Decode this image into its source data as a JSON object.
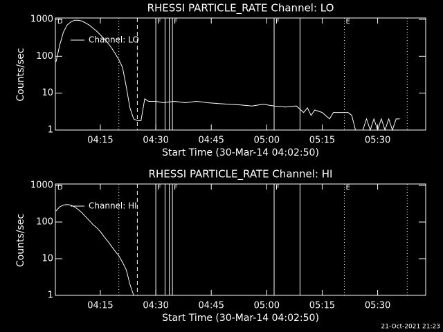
{
  "chart_data": [
    {
      "type": "line",
      "title": "RHESSI PARTICLE_RATE Channel: LO",
      "xlabel": "Start Time (30-Mar-14 04:02:50)",
      "ylabel": "Counts/sec",
      "log": true,
      "legend": "upper left",
      "ylim": [
        1,
        1000
      ],
      "yticks": [
        1,
        10,
        100,
        1000
      ],
      "xlim": [
        "04:02:50",
        "05:43"
      ],
      "xticks": [
        "04:15",
        "04:30",
        "04:45",
        "05:00",
        "05:15",
        "05:30"
      ],
      "markers": [
        {
          "x": "04:20",
          "style": "dotted"
        },
        {
          "x": "04:25",
          "style": "dashed"
        },
        {
          "x": "04:30",
          "style": "solid"
        },
        {
          "x": "04:32:30",
          "style": "solid"
        },
        {
          "x": "04:33:40",
          "style": "solid"
        },
        {
          "x": "04:34:30",
          "style": "solid"
        },
        {
          "x": "05:02",
          "style": "solid"
        },
        {
          "x": "05:09",
          "style": "solid"
        },
        {
          "x": "05:21",
          "style": "dotted"
        },
        {
          "x": "05:38",
          "style": "dotted"
        }
      ],
      "annotations": [
        {
          "text": "D",
          "x": "04:03"
        },
        {
          "text": "F",
          "x": "04:30"
        },
        {
          "text": "F",
          "x": "04:34:30"
        },
        {
          "text": "F",
          "x": "05:02"
        },
        {
          "text": "E",
          "x": "05:21"
        }
      ],
      "series": [
        {
          "name": "Channel: LO",
          "color": "#ffffff",
          "x": [
            "04:03",
            "04:04",
            "04:05",
            "04:06",
            "04:07",
            "04:08",
            "04:09",
            "04:10",
            "04:11",
            "04:12",
            "04:13",
            "04:14",
            "04:15",
            "04:16",
            "04:17",
            "04:18",
            "04:19",
            "04:20",
            "04:21",
            "04:22",
            "04:23",
            "04:24",
            "04:25",
            "04:26",
            "04:27",
            "04:28",
            "04:30",
            "04:32",
            "04:35",
            "04:38",
            "04:41",
            "04:44",
            "04:47",
            "04:50",
            "04:53",
            "04:56",
            "04:59",
            "05:02",
            "05:05",
            "05:08",
            "05:10",
            "05:11",
            "05:12",
            "05:13",
            "05:15",
            "05:17",
            "05:18",
            "05:20",
            "05:22",
            "05:23",
            "05:24",
            "05:26",
            "05:27",
            "05:28",
            "05:29",
            "05:30",
            "05:31",
            "05:32",
            "05:33",
            "05:34",
            "05:35",
            "05:36"
          ],
          "values": [
            70,
            200,
            450,
            700,
            850,
            950,
            950,
            900,
            800,
            700,
            580,
            480,
            380,
            300,
            230,
            170,
            120,
            80,
            50,
            15,
            4,
            2,
            1.8,
            1.8,
            7,
            6,
            6,
            5.5,
            6,
            5.5,
            6,
            5.5,
            5.2,
            5,
            4.8,
            4.5,
            5,
            4.5,
            4.2,
            4.5,
            3,
            4,
            2.5,
            3.5,
            3,
            2,
            3,
            3,
            3,
            2.5,
            1,
            1,
            2,
            1,
            2,
            1,
            2,
            1,
            2,
            1,
            2,
            2
          ]
        }
      ]
    },
    {
      "type": "line",
      "title": "RHESSI PARTICLE_RATE Channel: HI",
      "xlabel": "Start Time (30-Mar-14 04:02:50)",
      "ylabel": "Counts/sec",
      "log": true,
      "legend": "upper left",
      "ylim": [
        1,
        1000
      ],
      "yticks": [
        1,
        10,
        100,
        1000
      ],
      "xlim": [
        "04:02:50",
        "05:43"
      ],
      "xticks": [
        "04:15",
        "04:30",
        "04:45",
        "05:00",
        "05:15",
        "05:30"
      ],
      "markers": [
        {
          "x": "04:20",
          "style": "dotted"
        },
        {
          "x": "04:25",
          "style": "dashed"
        },
        {
          "x": "04:30",
          "style": "solid"
        },
        {
          "x": "04:32:30",
          "style": "solid"
        },
        {
          "x": "04:33:40",
          "style": "solid"
        },
        {
          "x": "04:34:30",
          "style": "solid"
        },
        {
          "x": "05:02",
          "style": "solid"
        },
        {
          "x": "05:09",
          "style": "solid"
        },
        {
          "x": "05:21",
          "style": "dotted"
        },
        {
          "x": "05:38",
          "style": "dotted"
        }
      ],
      "annotations": [
        {
          "text": "D",
          "x": "04:03"
        },
        {
          "text": "F",
          "x": "04:30"
        },
        {
          "text": "F",
          "x": "04:34:30"
        },
        {
          "text": "F",
          "x": "05:02"
        },
        {
          "text": "E",
          "x": "05:21"
        }
      ],
      "series": [
        {
          "name": "Channel: HI",
          "color": "#ffffff",
          "x": [
            "04:03",
            "04:04",
            "04:05",
            "04:06",
            "04:07",
            "04:08",
            "04:09",
            "04:10",
            "04:11",
            "04:12",
            "04:13",
            "04:14",
            "04:15",
            "04:16",
            "04:17",
            "04:18",
            "04:19",
            "04:20",
            "04:21",
            "04:22",
            "04:23",
            "04:24"
          ],
          "values": [
            200,
            260,
            290,
            300,
            290,
            260,
            220,
            180,
            140,
            110,
            85,
            70,
            55,
            40,
            30,
            22,
            16,
            12,
            8,
            5,
            2,
            1
          ]
        }
      ]
    }
  ],
  "footer": "21-Oct-2021 21:23"
}
